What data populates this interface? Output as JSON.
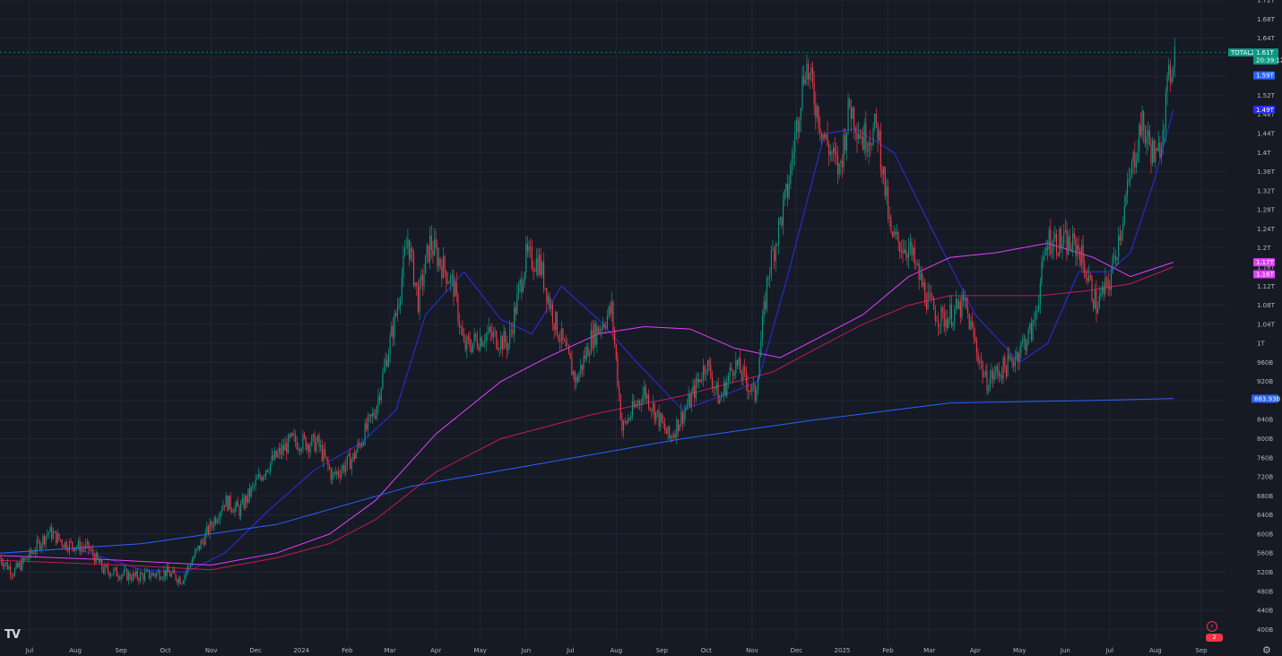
{
  "chart_data": {
    "type": "candlestick",
    "symbol": "TOTAL2",
    "last_price_label": "1.61T",
    "countdown_label": "20:39:12",
    "ylim": [
      380000000000,
      1720000000000
    ],
    "yticks": [
      {
        "v": 400000000000,
        "label": "400B"
      },
      {
        "v": 440000000000,
        "label": "440B"
      },
      {
        "v": 480000000000,
        "label": "480B"
      },
      {
        "v": 520000000000,
        "label": "520B"
      },
      {
        "v": 560000000000,
        "label": "560B"
      },
      {
        "v": 600000000000,
        "label": "600B"
      },
      {
        "v": 640000000000,
        "label": "640B"
      },
      {
        "v": 680000000000,
        "label": "680B"
      },
      {
        "v": 720000000000,
        "label": "720B"
      },
      {
        "v": 760000000000,
        "label": "760B"
      },
      {
        "v": 800000000000,
        "label": "800B"
      },
      {
        "v": 840000000000,
        "label": "840B"
      },
      {
        "v": 880000000000,
        "label": "880B"
      },
      {
        "v": 920000000000,
        "label": "920B"
      },
      {
        "v": 960000000000,
        "label": "960B"
      },
      {
        "v": 1000000000000,
        "label": "1T"
      },
      {
        "v": 1040000000000,
        "label": "1.04T"
      },
      {
        "v": 1080000000000,
        "label": "1.08T"
      },
      {
        "v": 1120000000000,
        "label": "1.12T"
      },
      {
        "v": 1160000000000,
        "label": "1.16T"
      },
      {
        "v": 1200000000000,
        "label": "1.2T"
      },
      {
        "v": 1240000000000,
        "label": "1.24T"
      },
      {
        "v": 1280000000000,
        "label": "1.28T"
      },
      {
        "v": 1320000000000,
        "label": "1.32T"
      },
      {
        "v": 1360000000000,
        "label": "1.36T"
      },
      {
        "v": 1400000000000,
        "label": "1.4T"
      },
      {
        "v": 1440000000000,
        "label": "1.44T"
      },
      {
        "v": 1480000000000,
        "label": "1.48T"
      },
      {
        "v": 1520000000000,
        "label": "1.52T"
      },
      {
        "v": 1560000000000,
        "label": "1.56T"
      },
      {
        "v": 1600000000000,
        "label": "1.6T"
      },
      {
        "v": 1640000000000,
        "label": "1.64T"
      },
      {
        "v": 1680000000000,
        "label": "1.68T"
      },
      {
        "v": 1720000000000,
        "label": "1.72T"
      }
    ],
    "xlim": [
      "2023-06-11",
      "2025-09-18"
    ],
    "xticks": [
      {
        "date": "2023-07-01",
        "label": "Jul"
      },
      {
        "date": "2023-08-01",
        "label": "Aug"
      },
      {
        "date": "2023-09-01",
        "label": "Sep"
      },
      {
        "date": "2023-10-01",
        "label": "Oct"
      },
      {
        "date": "2023-11-01",
        "label": "Nov"
      },
      {
        "date": "2023-12-01",
        "label": "Dec"
      },
      {
        "date": "2024-01-01",
        "label": "2024"
      },
      {
        "date": "2024-02-01",
        "label": "Feb"
      },
      {
        "date": "2024-03-01",
        "label": "Mar"
      },
      {
        "date": "2024-04-01",
        "label": "Apr"
      },
      {
        "date": "2024-05-01",
        "label": "May"
      },
      {
        "date": "2024-06-01",
        "label": "Jun"
      },
      {
        "date": "2024-07-01",
        "label": "Jul"
      },
      {
        "date": "2024-08-01",
        "label": "Aug"
      },
      {
        "date": "2024-09-01",
        "label": "Sep"
      },
      {
        "date": "2024-10-01",
        "label": "Oct"
      },
      {
        "date": "2024-11-01",
        "label": "Nov"
      },
      {
        "date": "2024-12-01",
        "label": "Dec"
      },
      {
        "date": "2025-01-01",
        "label": "2025"
      },
      {
        "date": "2025-02-01",
        "label": "Feb"
      },
      {
        "date": "2025-03-01",
        "label": "Mar"
      },
      {
        "date": "2025-04-01",
        "label": "Apr"
      },
      {
        "date": "2025-05-01",
        "label": "May"
      },
      {
        "date": "2025-06-01",
        "label": "Jun"
      },
      {
        "date": "2025-07-01",
        "label": "Jul"
      },
      {
        "date": "2025-08-01",
        "label": "Aug"
      },
      {
        "date": "2025-09-01",
        "label": "Sep"
      }
    ],
    "price_path": [
      [
        "2023-06-11",
        550000000000
      ],
      [
        "2023-06-20",
        520000000000
      ],
      [
        "2023-07-01",
        555000000000
      ],
      [
        "2023-07-14",
        605000000000
      ],
      [
        "2023-07-25",
        580000000000
      ],
      [
        "2023-08-10",
        570000000000
      ],
      [
        "2023-08-20",
        525000000000
      ],
      [
        "2023-09-10",
        510000000000
      ],
      [
        "2023-10-01",
        520000000000
      ],
      [
        "2023-10-12",
        505000000000
      ],
      [
        "2023-10-25",
        580000000000
      ],
      [
        "2023-11-10",
        670000000000
      ],
      [
        "2023-11-20",
        650000000000
      ],
      [
        "2023-12-08",
        740000000000
      ],
      [
        "2023-12-25",
        795000000000
      ],
      [
        "2024-01-12",
        790000000000
      ],
      [
        "2024-01-22",
        720000000000
      ],
      [
        "2024-02-05",
        760000000000
      ],
      [
        "2024-02-20",
        860000000000
      ],
      [
        "2024-03-05",
        1060000000000
      ],
      [
        "2024-03-13",
        1220000000000
      ],
      [
        "2024-03-20",
        1090000000000
      ],
      [
        "2024-03-28",
        1210000000000
      ],
      [
        "2024-04-13",
        1120000000000
      ],
      [
        "2024-04-20",
        990000000000
      ],
      [
        "2024-05-05",
        1020000000000
      ],
      [
        "2024-05-20",
        1000000000000
      ],
      [
        "2024-06-01",
        1180000000000
      ],
      [
        "2024-06-10",
        1170000000000
      ],
      [
        "2024-06-20",
        1050000000000
      ],
      [
        "2024-07-05",
        920000000000
      ],
      [
        "2024-07-15",
        1010000000000
      ],
      [
        "2024-07-29",
        1070000000000
      ],
      [
        "2024-08-05",
        820000000000
      ],
      [
        "2024-08-20",
        900000000000
      ],
      [
        "2024-09-06",
        800000000000
      ],
      [
        "2024-09-20",
        880000000000
      ],
      [
        "2024-10-01",
        960000000000
      ],
      [
        "2024-10-10",
        880000000000
      ],
      [
        "2024-10-20",
        960000000000
      ],
      [
        "2024-11-03",
        890000000000
      ],
      [
        "2024-11-12",
        1150000000000
      ],
      [
        "2024-11-25",
        1320000000000
      ],
      [
        "2024-12-07",
        1590000000000
      ],
      [
        "2024-12-20",
        1430000000000
      ],
      [
        "2024-12-30",
        1360000000000
      ],
      [
        "2025-01-06",
        1500000000000
      ],
      [
        "2025-01-15",
        1430000000000
      ],
      [
        "2025-01-25",
        1450000000000
      ],
      [
        "2025-02-03",
        1220000000000
      ],
      [
        "2025-02-15",
        1200000000000
      ],
      [
        "2025-03-01",
        1080000000000
      ],
      [
        "2025-03-10",
        1050000000000
      ],
      [
        "2025-03-25",
        1080000000000
      ],
      [
        "2025-04-08",
        920000000000
      ],
      [
        "2025-04-25",
        960000000000
      ],
      [
        "2025-05-10",
        1030000000000
      ],
      [
        "2025-05-20",
        1220000000000
      ],
      [
        "2025-06-10",
        1200000000000
      ],
      [
        "2025-06-22",
        1080000000000
      ],
      [
        "2025-07-01",
        1130000000000
      ],
      [
        "2025-07-12",
        1300000000000
      ],
      [
        "2025-07-22",
        1460000000000
      ],
      [
        "2025-08-02",
        1380000000000
      ],
      [
        "2025-08-13",
        1610000000000
      ],
      [
        "2025-08-14",
        1610000000000
      ]
    ],
    "series": [
      {
        "indicator": "blue-ma",
        "color": "#2a2ee8",
        "last_label": "1.49T",
        "points": [
          [
            "2023-06-11",
            560000000000
          ],
          [
            "2023-08-01",
            570000000000
          ],
          [
            "2023-09-15",
            525000000000
          ],
          [
            "2023-10-15",
            520000000000
          ],
          [
            "2023-11-10",
            560000000000
          ],
          [
            "2023-12-10",
            650000000000
          ],
          [
            "2024-01-10",
            735000000000
          ],
          [
            "2024-02-10",
            790000000000
          ],
          [
            "2024-03-05",
            860000000000
          ],
          [
            "2024-03-25",
            1060000000000
          ],
          [
            "2024-04-20",
            1150000000000
          ],
          [
            "2024-05-15",
            1050000000000
          ],
          [
            "2024-06-05",
            1020000000000
          ],
          [
            "2024-06-25",
            1120000000000
          ],
          [
            "2024-07-20",
            1050000000000
          ],
          [
            "2024-08-15",
            960000000000
          ],
          [
            "2024-09-15",
            860000000000
          ],
          [
            "2024-10-20",
            900000000000
          ],
          [
            "2024-11-05",
            920000000000
          ],
          [
            "2024-11-25",
            1140000000000
          ],
          [
            "2024-12-20",
            1440000000000
          ],
          [
            "2025-01-10",
            1450000000000
          ],
          [
            "2025-02-05",
            1400000000000
          ],
          [
            "2025-03-01",
            1250000000000
          ],
          [
            "2025-04-01",
            1060000000000
          ],
          [
            "2025-05-01",
            960000000000
          ],
          [
            "2025-05-20",
            1000000000000
          ],
          [
            "2025-06-10",
            1150000000000
          ],
          [
            "2025-07-01",
            1150000000000
          ],
          [
            "2025-07-15",
            1190000000000
          ],
          [
            "2025-08-01",
            1350000000000
          ],
          [
            "2025-08-13",
            1490000000000
          ]
        ]
      },
      {
        "indicator": "magenta-ma",
        "color": "#e040fb",
        "last_label": "1.17T",
        "points": [
          [
            "2023-06-11",
            555000000000
          ],
          [
            "2023-09-01",
            545000000000
          ],
          [
            "2023-11-01",
            535000000000
          ],
          [
            "2023-12-15",
            560000000000
          ],
          [
            "2024-01-20",
            600000000000
          ],
          [
            "2024-02-20",
            670000000000
          ],
          [
            "2024-04-01",
            810000000000
          ],
          [
            "2024-05-15",
            920000000000
          ],
          [
            "2024-06-15",
            970000000000
          ],
          [
            "2024-07-20",
            1020000000000
          ],
          [
            "2024-08-20",
            1035000000000
          ],
          [
            "2024-09-20",
            1030000000000
          ],
          [
            "2024-10-20",
            990000000000
          ],
          [
            "2024-11-20",
            970000000000
          ],
          [
            "2024-12-15",
            1010000000000
          ],
          [
            "2025-01-15",
            1060000000000
          ],
          [
            "2025-02-15",
            1140000000000
          ],
          [
            "2025-03-15",
            1180000000000
          ],
          [
            "2025-04-15",
            1190000000000
          ],
          [
            "2025-05-20",
            1210000000000
          ],
          [
            "2025-06-20",
            1180000000000
          ],
          [
            "2025-07-15",
            1140000000000
          ],
          [
            "2025-08-13",
            1170000000000
          ]
        ]
      },
      {
        "indicator": "pink-ma",
        "color": "#c2185b",
        "last_label": "1.16T",
        "points": [
          [
            "2023-06-11",
            545000000000
          ],
          [
            "2023-09-01",
            535000000000
          ],
          [
            "2023-11-01",
            525000000000
          ],
          [
            "2023-12-15",
            550000000000
          ],
          [
            "2024-01-20",
            580000000000
          ],
          [
            "2024-02-20",
            630000000000
          ],
          [
            "2024-04-01",
            730000000000
          ],
          [
            "2024-05-15",
            800000000000
          ],
          [
            "2024-07-15",
            850000000000
          ],
          [
            "2024-09-15",
            890000000000
          ],
          [
            "2024-11-15",
            940000000000
          ],
          [
            "2024-12-15",
            990000000000
          ],
          [
            "2025-01-15",
            1040000000000
          ],
          [
            "2025-02-15",
            1080000000000
          ],
          [
            "2025-03-15",
            1100000000000
          ],
          [
            "2025-05-15",
            1100000000000
          ],
          [
            "2025-06-15",
            1110000000000
          ],
          [
            "2025-07-15",
            1125000000000
          ],
          [
            "2025-08-13",
            1160000000000
          ]
        ]
      },
      {
        "indicator": "long-blue-ma",
        "color": "#2962ff",
        "last_label": "883.93B",
        "points": [
          [
            "2023-06-11",
            560000000000
          ],
          [
            "2023-09-15",
            580000000000
          ],
          [
            "2023-12-15",
            620000000000
          ],
          [
            "2024-03-15",
            700000000000
          ],
          [
            "2024-06-15",
            750000000000
          ],
          [
            "2024-09-15",
            800000000000
          ],
          [
            "2024-12-15",
            840000000000
          ],
          [
            "2025-03-15",
            875000000000
          ],
          [
            "2025-06-15",
            880000000000
          ],
          [
            "2025-08-13",
            884000000000
          ]
        ]
      }
    ],
    "current_price_tag": {
      "label": "1.61T",
      "color": "#089981"
    },
    "secondary_price_tag": {
      "label": "1.59T",
      "color": "#2962ff"
    }
  },
  "ui": {
    "logo_text": "TV",
    "gear_icon": "gear-icon",
    "event_badge_text": "2"
  }
}
